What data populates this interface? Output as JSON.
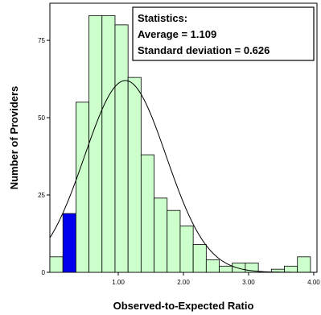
{
  "chart_data": {
    "type": "bar",
    "xlabel": "Observed-to-Expected Ratio",
    "ylabel": "Number of Providers",
    "xlim": [
      -0.05,
      4.05
    ],
    "ylim": [
      0,
      87
    ],
    "bin_width": 0.2,
    "bins": [
      {
        "x0": -0.05,
        "value": 5
      },
      {
        "x0": 0.15,
        "value": 19,
        "highlight": true
      },
      {
        "x0": 0.35,
        "value": 55
      },
      {
        "x0": 0.55,
        "value": 83
      },
      {
        "x0": 0.75,
        "value": 83
      },
      {
        "x0": 0.95,
        "value": 80
      },
      {
        "x0": 1.15,
        "value": 63
      },
      {
        "x0": 1.35,
        "value": 38
      },
      {
        "x0": 1.55,
        "value": 24
      },
      {
        "x0": 1.75,
        "value": 20
      },
      {
        "x0": 1.95,
        "value": 15
      },
      {
        "x0": 2.15,
        "value": 9
      },
      {
        "x0": 2.35,
        "value": 4
      },
      {
        "x0": 2.55,
        "value": 2
      },
      {
        "x0": 2.75,
        "value": 3
      },
      {
        "x0": 2.95,
        "value": 3
      },
      {
        "x0": 3.15,
        "value": 0
      },
      {
        "x0": 3.35,
        "value": 1
      },
      {
        "x0": 3.55,
        "value": 2
      },
      {
        "x0": 3.75,
        "value": 5
      }
    ],
    "x_ticks": [
      {
        "value": 1.0,
        "label": "1.00"
      },
      {
        "value": 2.0,
        "label": "2.00"
      },
      {
        "value": 3.0,
        "label": "3.00"
      },
      {
        "value": 4.0,
        "label": "4.00"
      }
    ],
    "y_ticks": [
      {
        "value": 0,
        "label": "0"
      },
      {
        "value": 25,
        "label": "25"
      },
      {
        "value": 50,
        "label": "50"
      },
      {
        "value": 75,
        "label": "75"
      }
    ],
    "normal_curve": {
      "mean": 1.109,
      "sd": 0.626,
      "peak": 62
    },
    "stats_box": {
      "lines": [
        "Statistics:",
        "Average = 1.109",
        "Standard deviation = 0.626"
      ],
      "placement": "top-right"
    },
    "colors": {
      "bar_fill": "#ccffcc",
      "bar_stroke": "#000000",
      "highlight_fill": "#0000ee",
      "curve": "#000000"
    }
  }
}
